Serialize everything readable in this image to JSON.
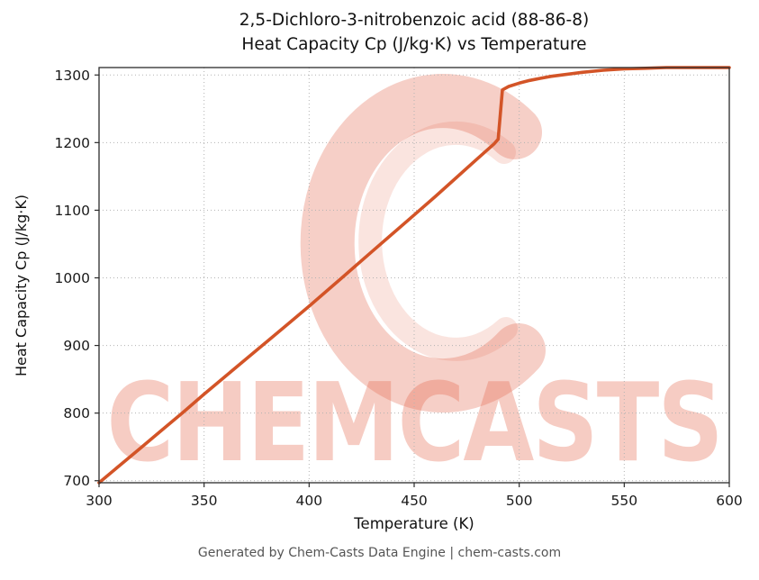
{
  "watermark": {
    "text": "CHEMCASTS",
    "color": "#e46a50",
    "opacity": 0.34
  },
  "footer": {
    "text": "Generated by Chem-Casts Data Engine | chem-casts.com"
  },
  "chart_data": {
    "type": "line",
    "title_lines": [
      "2,5-Dichloro-3-nitrobenzoic acid (88-86-8)",
      "Heat Capacity Cp (J/kg·K) vs Temperature"
    ],
    "xlabel": "Temperature (K)",
    "ylabel": "Heat Capacity Cp (J/kg·K)",
    "xlim": [
      300,
      600
    ],
    "ylim": [
      697,
      1311
    ],
    "x_ticks": [
      300,
      350,
      400,
      450,
      500,
      550,
      600
    ],
    "y_ticks": [
      700,
      800,
      900,
      1000,
      1100,
      1200,
      1300
    ],
    "grid": true,
    "legend": "none",
    "series": [
      {
        "name": "Cp",
        "color": "#d35427",
        "points": [
          [
            300,
            697
          ],
          [
            310,
            723
          ],
          [
            320,
            749
          ],
          [
            330,
            775
          ],
          [
            340,
            801
          ],
          [
            350,
            828
          ],
          [
            360,
            854
          ],
          [
            370,
            880
          ],
          [
            380,
            906
          ],
          [
            390,
            932
          ],
          [
            400,
            958
          ],
          [
            410,
            985
          ],
          [
            420,
            1012
          ],
          [
            430,
            1039
          ],
          [
            440,
            1066
          ],
          [
            450,
            1093
          ],
          [
            460,
            1120
          ],
          [
            470,
            1148
          ],
          [
            480,
            1176
          ],
          [
            488,
            1198
          ],
          [
            490,
            1205
          ],
          [
            491,
            1242
          ],
          [
            492,
            1278
          ],
          [
            495,
            1283
          ],
          [
            500,
            1288
          ],
          [
            505,
            1292
          ],
          [
            510,
            1295
          ],
          [
            515,
            1298
          ],
          [
            520,
            1300
          ],
          [
            530,
            1304
          ],
          [
            540,
            1307
          ],
          [
            550,
            1309
          ],
          [
            560,
            1310
          ],
          [
            570,
            1311
          ],
          [
            580,
            1311
          ],
          [
            590,
            1311
          ],
          [
            600,
            1311
          ]
        ]
      }
    ]
  }
}
